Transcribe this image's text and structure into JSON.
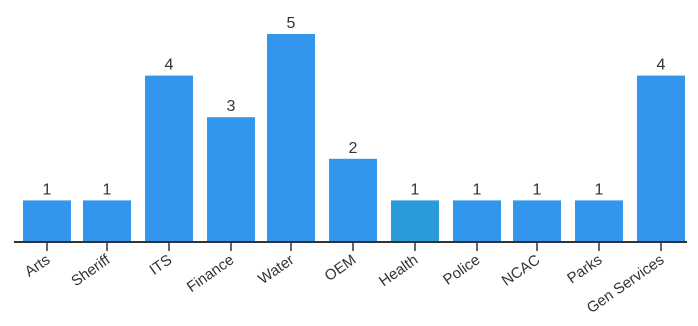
{
  "chart_data": {
    "type": "bar",
    "categories": [
      "Arts",
      "Sheriff",
      "ITS",
      "Finance",
      "Water",
      "OEM",
      "Health",
      "Police",
      "NCAC",
      "Parks",
      "Gen Services"
    ],
    "values": [
      1,
      1,
      4,
      3,
      5,
      2,
      1,
      1,
      1,
      1,
      4
    ],
    "title": "",
    "xlabel": "",
    "ylabel": "",
    "ylim": [
      0,
      5
    ],
    "grid": false,
    "legend": "none",
    "data_labels": true,
    "x_tick_rotation_deg": -35
  },
  "colors": {
    "bar": "#3196ec",
    "bar_highlight": "#2a9ad8",
    "axis": "#333333",
    "text": "#333333"
  },
  "highlighted_category": "Health"
}
